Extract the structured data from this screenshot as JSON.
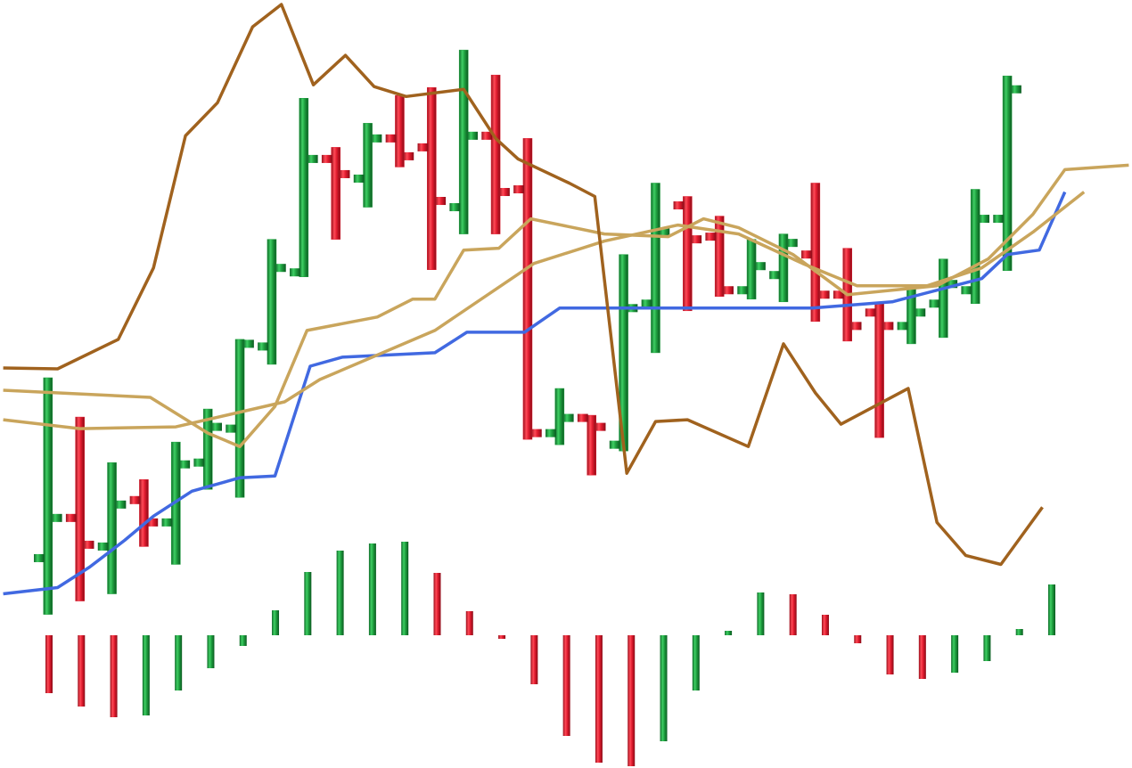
{
  "chart_data": [
    {
      "type": "ohlc",
      "x": [
        0,
        1,
        2,
        3,
        4,
        5,
        6,
        7,
        8,
        9,
        10,
        11,
        12,
        13,
        14,
        15,
        16,
        17,
        18,
        19,
        20,
        21,
        22,
        23,
        24,
        25,
        26,
        27,
        28,
        29,
        30
      ],
      "open": [
        27.5,
        32.0,
        28.8,
        34.0,
        31.5,
        38.2,
        42.0,
        51.2,
        59.5,
        72.2,
        70.0,
        74.5,
        73.5,
        66.8,
        74.8,
        68.8,
        41.5,
        43.2,
        40.2,
        56.0,
        67.0,
        63.5,
        57.5,
        59.2,
        61.5,
        57.0,
        55.0,
        53.5,
        56.0,
        57.5,
        65.5
      ],
      "high": [
        47.7,
        43.3,
        38.2,
        36.3,
        40.5,
        44.2,
        52.0,
        63.2,
        79.0,
        73.5,
        76.2,
        79.3,
        80.2,
        84.4,
        81.6,
        74.5,
        46.5,
        43.5,
        61.5,
        69.5,
        68.0,
        65.8,
        63.2,
        63.8,
        69.5,
        62.2,
        56.0,
        58.0,
        61.0,
        68.8,
        81.5
      ],
      "low": [
        21.2,
        22.7,
        23.5,
        28.8,
        26.8,
        35.2,
        34.3,
        49.2,
        59.0,
        63.2,
        66.8,
        71.3,
        59.8,
        63.8,
        63.8,
        40.8,
        40.2,
        36.8,
        39.5,
        50.5,
        55.2,
        56.8,
        56.5,
        56.2,
        54.0,
        51.8,
        41.0,
        51.5,
        52.2,
        56.0,
        59.7
      ],
      "close": [
        32.0,
        29.0,
        33.5,
        31.5,
        38.0,
        42.2,
        51.5,
        60.0,
        72.2,
        70.5,
        74.5,
        72.5,
        67.5,
        74.8,
        68.5,
        41.5,
        43.2,
        42.2,
        55.5,
        64.0,
        63.2,
        57.5,
        60.2,
        62.8,
        57.0,
        53.5,
        53.5,
        55.0,
        58.2,
        65.5,
        80.0
      ],
      "up_color": "#1e9e3e",
      "down_color": "#e01b2e",
      "xlim": [
        -1.5,
        33.9
      ],
      "ylim": [
        4,
        90
      ],
      "series": [
        {
          "color": "#4169e1",
          "x": [
            -1.4,
            0.3,
            1.3,
            2.4,
            3.3,
            4.5,
            6.0,
            7.1,
            8.2,
            9.2,
            12.1,
            13.1,
            14.9,
            16.0,
            17.4,
            23.9,
            26.4,
            29.2,
            30.0,
            31.0,
            31.8
          ],
          "values": [
            23.5,
            24.2,
            26.5,
            29.5,
            32.2,
            35.0,
            36.5,
            36.7,
            49.0,
            50.0,
            50.5,
            52.8,
            52.8,
            55.5,
            55.5,
            55.5,
            56.2,
            58.8,
            61.5,
            62.0,
            68.5
          ]
        },
        {
          "color": "#c9a55c",
          "x": [
            -1.4,
            3.2,
            5.0,
            6.0,
            7.1,
            8.1,
            10.3,
            11.4,
            12.1,
            13.0,
            14.1,
            15.1,
            17.4,
            19.4,
            20.5,
            21.6,
            23.3,
            25.0,
            27.8,
            29.4,
            30.8,
            31.8,
            33.8
          ],
          "values": [
            46.3,
            45.5,
            41.5,
            40.0,
            44.5,
            53.0,
            54.5,
            56.5,
            56.5,
            62.0,
            62.2,
            65.5,
            63.8,
            63.5,
            65.5,
            64.5,
            61.5,
            57.0,
            58.0,
            61.0,
            66.0,
            71.0,
            71.5
          ]
        },
        {
          "color": "#c9a55c",
          "x": [
            -1.4,
            1.0,
            4.0,
            7.4,
            8.5,
            12.1,
            15.2,
            17.4,
            19.7,
            21.6,
            23.6,
            25.3,
            27.5,
            29.2,
            30.8,
            32.4
          ],
          "values": [
            43.0,
            42.0,
            42.2,
            45.0,
            47.5,
            53.0,
            60.5,
            63.0,
            64.8,
            63.8,
            60.5,
            58.0,
            58.0,
            60.0,
            64.0,
            68.5
          ]
        },
        {
          "color": "#a0621e",
          "x": [
            -1.4,
            0.3,
            2.2,
            3.3,
            4.3,
            5.3,
            6.4,
            7.3,
            8.3,
            9.3,
            10.2,
            11.2,
            13.0,
            14.0,
            14.7,
            16.3,
            17.1,
            18.1,
            19.0,
            20.0,
            21.9,
            23.0,
            24.0,
            24.8,
            26.9,
            27.8,
            28.7,
            29.8,
            31.1
          ],
          "values": [
            48.8,
            48.7,
            52.0,
            60.0,
            74.8,
            78.5,
            87.0,
            89.5,
            80.5,
            83.8,
            80.3,
            79.2,
            80.0,
            74.5,
            72.2,
            69.5,
            68.0,
            37.0,
            42.8,
            43.0,
            40.0,
            51.5,
            46.0,
            42.5,
            46.5,
            31.5,
            27.8,
            26.8,
            33.2
          ]
        }
      ]
    },
    {
      "type": "histogram-bars",
      "values": [
        -6.5,
        -8.0,
        -9.2,
        -9.0,
        -6.2,
        -3.7,
        -1.2,
        2.8,
        7.1,
        9.5,
        10.3,
        10.5,
        7.0,
        2.7,
        -0.4,
        -5.5,
        -11.3,
        -14.3,
        -14.7,
        -11.9,
        -6.2,
        0.5,
        4.8,
        4.6,
        2.3,
        -0.9,
        -4.4,
        -4.9,
        -4.2,
        -2.9,
        0.7,
        5.7
      ],
      "up_color": "#1e9e3e",
      "down_color": "#e01b2e",
      "ylim": [
        -14.9,
        11.3
      ]
    }
  ]
}
